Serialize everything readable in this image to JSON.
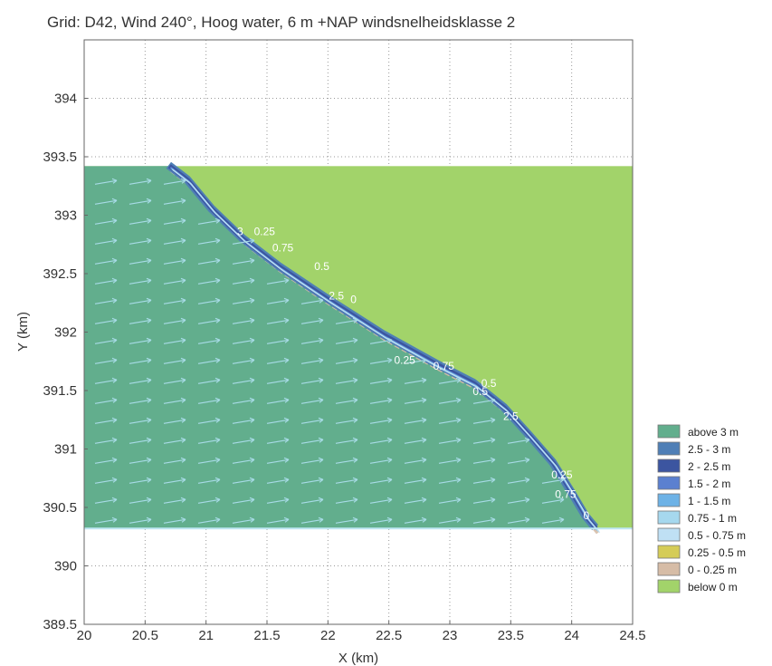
{
  "chart_data": {
    "type": "heatmap",
    "title": "Grid: D42, Wind 240°, Hoog water, 6 m +NAP windsnelheidsklasse 2",
    "xlabel": "X (km)",
    "ylabel": "Y (km)",
    "xlim": [
      20,
      24.5
    ],
    "ylim": [
      389.5,
      394.5
    ],
    "xticks": [
      "20",
      "20.5",
      "21",
      "21.5",
      "22",
      "22.5",
      "23",
      "23.5",
      "24",
      "24.5"
    ],
    "yticks": [
      "389.5",
      "390",
      "390.5",
      "391",
      "391.5",
      "392",
      "392.5",
      "393",
      "393.5",
      "394"
    ],
    "grid": true,
    "legend_position": "right",
    "colors": {
      "above_3": "#62ae8d",
      "2.5_3": "#4f7fb6",
      "2_2.5": "#3c55a0",
      "1.5_2": "#5b80d0",
      "1_1.5": "#6db2e6",
      "0.75_1": "#a6d8ee",
      "0.5_0.75": "#bfe0f4",
      "0.25_0.5": "#d5cc57",
      "0_0.25": "#d6bca6",
      "below_0": "#a2d36a"
    },
    "domain": {
      "x": [
        20,
        24.5
      ],
      "y": [
        390.32,
        393.42
      ]
    },
    "shoreline": [
      [
        20.7,
        393.42
      ],
      [
        20.85,
        393.3
      ],
      [
        21.05,
        393.05
      ],
      [
        21.3,
        392.8
      ],
      [
        21.6,
        392.56
      ],
      [
        22.0,
        392.28
      ],
      [
        22.45,
        391.98
      ],
      [
        22.9,
        391.72
      ],
      [
        23.2,
        391.56
      ],
      [
        23.45,
        391.35
      ],
      [
        23.65,
        391.12
      ],
      [
        23.85,
        390.88
      ],
      [
        24.0,
        390.63
      ],
      [
        24.12,
        390.42
      ],
      [
        24.2,
        390.32
      ]
    ],
    "legend": [
      "above 3 m",
      "2.5 - 3 m",
      "2 - 2.5 m",
      "1.5 - 2 m",
      "1 - 1.5 m",
      "0.75 - 1 m",
      "0.5 - 0.75 m",
      "0.25 - 0.5 m",
      "0 - 0.25 m",
      "below 0 m"
    ],
    "contour_labels": [
      {
        "text": "3",
        "x": 21.28,
        "y": 392.83
      },
      {
        "text": "0.25",
        "x": 21.48,
        "y": 392.83
      },
      {
        "text": "0.75",
        "x": 21.63,
        "y": 392.69
      },
      {
        "text": "0.5",
        "x": 21.95,
        "y": 392.53
      },
      {
        "text": "2.5",
        "x": 22.07,
        "y": 392.28
      },
      {
        "text": "0",
        "x": 22.21,
        "y": 392.25
      },
      {
        "text": "0.25",
        "x": 22.63,
        "y": 391.73
      },
      {
        "text": "0.75",
        "x": 22.95,
        "y": 391.68
      },
      {
        "text": "0.5",
        "x": 23.32,
        "y": 391.53
      },
      {
        "text": "0.5",
        "x": 23.25,
        "y": 391.46
      },
      {
        "text": "2.5",
        "x": 23.5,
        "y": 391.25
      },
      {
        "text": "0.25",
        "x": 23.92,
        "y": 390.75
      },
      {
        "text": "0.75",
        "x": 23.95,
        "y": 390.58
      },
      {
        "text": "0",
        "x": 24.12,
        "y": 390.4
      }
    ]
  }
}
